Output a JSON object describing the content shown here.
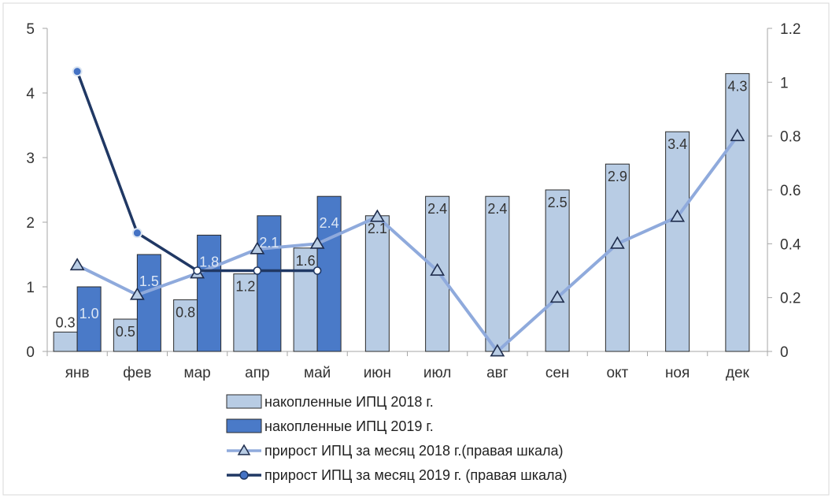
{
  "chart_data": {
    "type": "bar",
    "categories": [
      "янв",
      "фев",
      "мар",
      "апр",
      "май",
      "июн",
      "июл",
      "авг",
      "сен",
      "окт",
      "ноя",
      "дек"
    ],
    "y_left": {
      "min": 0,
      "max": 5,
      "ticks": [
        "0",
        "1",
        "2",
        "3",
        "4",
        "5"
      ]
    },
    "y_right": {
      "min": 0,
      "max": 1.2,
      "ticks": [
        "0",
        "0.2",
        "0.4",
        "0.6",
        "0.8",
        "1",
        "1.2"
      ]
    },
    "series": [
      {
        "name": "накопленные ИПЦ 2018 г.",
        "kind": "bar",
        "axis": "left",
        "color": "#b8cce4",
        "values": [
          0.3,
          0.5,
          0.8,
          1.2,
          1.6,
          2.1,
          2.4,
          2.4,
          2.5,
          2.9,
          3.4,
          4.3
        ],
        "labels": [
          "0.3",
          "0.5",
          "0.8",
          "1.2",
          "1.6",
          "2.1",
          "2.4",
          "2.4",
          "2.5",
          "2.9",
          "3.4",
          "4.3"
        ]
      },
      {
        "name": "накопленные ИПЦ 2019 г.",
        "kind": "bar",
        "axis": "left",
        "color": "#4a7ac8",
        "values": [
          1.0,
          1.5,
          1.8,
          2.1,
          2.4,
          null,
          null,
          null,
          null,
          null,
          null,
          null
        ],
        "labels": [
          "1.0",
          "1.5",
          "1.8",
          "2.1",
          "2.4"
        ]
      },
      {
        "name": "прирост ИПЦ за месяц 2018 г.(правая шкала)",
        "kind": "line",
        "axis": "right",
        "marker": "triangle",
        "color": "#8faadc",
        "values": [
          0.32,
          0.21,
          0.29,
          0.38,
          0.4,
          0.5,
          0.3,
          0.0,
          0.2,
          0.4,
          0.5,
          0.8
        ]
      },
      {
        "name": "прирост ИПЦ за месяц 2019 г. (правая шкала)",
        "kind": "line",
        "axis": "right",
        "marker": "circle",
        "color": "#203864",
        "values": [
          1.04,
          0.44,
          0.3,
          0.3,
          0.3,
          null,
          null,
          null,
          null,
          null,
          null,
          null
        ]
      }
    ],
    "legend_position": "bottom",
    "grid": false
  }
}
